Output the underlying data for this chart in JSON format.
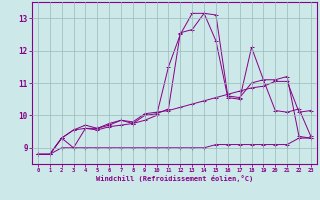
{
  "xlabel": "Windchill (Refroidissement éolien,°C)",
  "xlim": [
    -0.5,
    23.5
  ],
  "ylim": [
    8.5,
    13.5
  ],
  "yticks": [
    9,
    10,
    11,
    12,
    13
  ],
  "xticks": [
    0,
    1,
    2,
    3,
    4,
    5,
    6,
    7,
    8,
    9,
    10,
    11,
    12,
    13,
    14,
    15,
    16,
    17,
    18,
    19,
    20,
    21,
    22,
    23
  ],
  "bg_color": "#cce8e8",
  "line_color": "#880088",
  "grid_color": "#99bbbb",
  "series": [
    [
      8.8,
      8.8,
      9.3,
      9.55,
      9.6,
      9.6,
      9.7,
      9.85,
      9.75,
      10.0,
      10.05,
      10.2,
      12.55,
      12.65,
      13.15,
      12.3,
      10.55,
      10.5,
      12.1,
      11.1,
      11.1,
      11.2,
      9.35,
      9.3
    ],
    [
      8.8,
      8.8,
      9.3,
      9.0,
      9.6,
      9.55,
      9.65,
      9.7,
      9.75,
      9.85,
      10.0,
      11.5,
      12.5,
      13.15,
      13.15,
      13.1,
      10.6,
      10.55,
      11.0,
      11.1,
      10.15,
      10.1,
      10.2,
      9.35
    ],
    [
      8.8,
      8.8,
      9.0,
      9.0,
      9.0,
      9.0,
      9.0,
      9.0,
      9.0,
      9.0,
      9.0,
      9.0,
      9.0,
      9.0,
      9.0,
      9.1,
      9.1,
      9.1,
      9.1,
      9.1,
      9.1,
      9.1,
      9.3,
      9.3
    ],
    [
      8.8,
      8.8,
      9.3,
      9.55,
      9.7,
      9.6,
      9.75,
      9.85,
      9.8,
      10.05,
      10.1,
      10.15,
      10.25,
      10.35,
      10.45,
      10.55,
      10.65,
      10.75,
      10.85,
      10.9,
      11.05,
      11.05,
      10.1,
      10.15
    ]
  ]
}
